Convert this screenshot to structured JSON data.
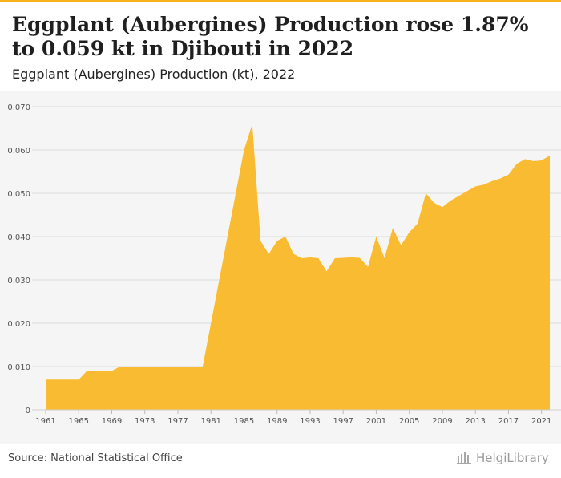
{
  "header": {
    "title": "Eggplant (Aubergines) Production rose 1.87% to 0.059 kt in Djibouti in 2022",
    "subtitle": "Eggplant (Aubergines) Production (kt), 2022"
  },
  "footer": {
    "source": "Source: National Statistical Office",
    "logo_text": "HelgiLibrary"
  },
  "colors": {
    "accent": "#f5b21a",
    "area_fill": "#f9bb31",
    "plot_background": "#f5f5f5",
    "grid": "#dcdcdc"
  },
  "chart_data": {
    "type": "area",
    "title": "Eggplant (Aubergines) Production (kt), 2022",
    "xlabel": "",
    "ylabel": "",
    "ylim": [
      0,
      0.07
    ],
    "grid": true,
    "yticks": [
      0,
      0.01,
      0.02,
      0.03,
      0.04,
      0.05,
      0.06,
      0.07
    ],
    "ytick_labels": [
      "0",
      "0.010",
      "0.020",
      "0.030",
      "0.040",
      "0.050",
      "0.060",
      "0.070"
    ],
    "xtick_labels": [
      "1961",
      "1965",
      "1969",
      "1973",
      "1977",
      "1981",
      "1985",
      "1989",
      "1993",
      "1997",
      "2001",
      "2005",
      "2009",
      "2013",
      "2017",
      "2021"
    ],
    "x": [
      1961,
      1962,
      1963,
      1964,
      1965,
      1966,
      1967,
      1968,
      1969,
      1970,
      1971,
      1972,
      1973,
      1974,
      1975,
      1976,
      1977,
      1978,
      1979,
      1980,
      1981,
      1982,
      1983,
      1984,
      1985,
      1986,
      1987,
      1988,
      1989,
      1990,
      1991,
      1992,
      1993,
      1994,
      1995,
      1996,
      1997,
      1998,
      1999,
      2000,
      2001,
      2002,
      2003,
      2004,
      2005,
      2006,
      2007,
      2008,
      2009,
      2010,
      2011,
      2012,
      2013,
      2014,
      2015,
      2016,
      2017,
      2018,
      2019,
      2020,
      2021,
      2022
    ],
    "values": [
      0.007,
      0.007,
      0.007,
      0.007,
      0.007,
      0.009,
      0.009,
      0.009,
      0.009,
      0.01,
      0.01,
      0.01,
      0.01,
      0.01,
      0.01,
      0.01,
      0.01,
      0.01,
      0.01,
      0.01,
      0.02,
      0.03,
      0.04,
      0.05,
      0.06,
      0.066,
      0.039,
      0.036,
      0.039,
      0.04,
      0.036,
      0.035,
      0.0352,
      0.035,
      0.032,
      0.035,
      0.0351,
      0.0352,
      0.0351,
      0.033,
      0.04,
      0.035,
      0.042,
      0.038,
      0.041,
      0.043,
      0.05,
      0.0478,
      0.0468,
      0.0483,
      0.0494,
      0.0505,
      0.0516,
      0.052,
      0.0528,
      0.0534,
      0.0543,
      0.0568,
      0.0579,
      0.0574,
      0.0576,
      0.0587
    ]
  }
}
